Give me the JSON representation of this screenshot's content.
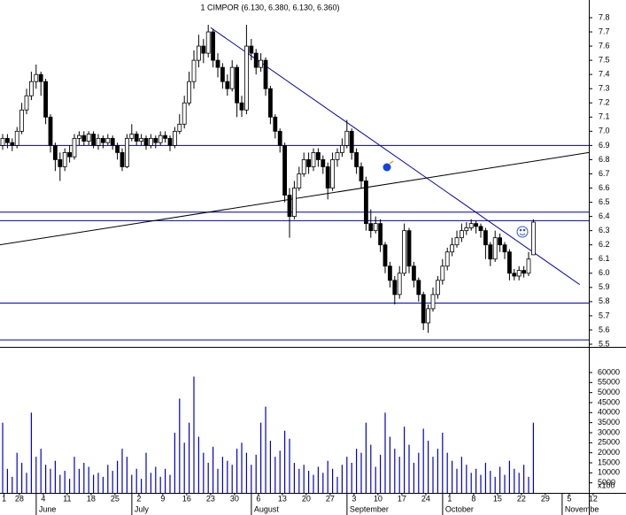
{
  "chart_data": {
    "type": "candlestick",
    "title": "1 CIMPOR (6.130, 6.380, 6.130, 6.360)",
    "candles": [
      [
        6.9,
        6.98,
        6.87,
        6.95
      ],
      [
        6.95,
        6.98,
        6.88,
        6.92
      ],
      [
        6.92,
        6.95,
        6.86,
        6.9
      ],
      [
        6.9,
        7.03,
        6.88,
        7.0
      ],
      [
        7.0,
        7.2,
        6.98,
        7.15
      ],
      [
        7.15,
        7.3,
        7.12,
        7.25
      ],
      [
        7.25,
        7.42,
        7.22,
        7.35
      ],
      [
        7.35,
        7.47,
        7.3,
        7.4
      ],
      [
        7.4,
        7.42,
        7.25,
        7.35
      ],
      [
        7.35,
        7.37,
        7.05,
        7.1
      ],
      [
        7.1,
        7.12,
        6.85,
        6.9
      ],
      [
        6.9,
        6.92,
        6.72,
        6.8
      ],
      [
        6.8,
        6.85,
        6.65,
        6.75
      ],
      [
        6.75,
        6.88,
        6.72,
        6.85
      ],
      [
        6.85,
        6.9,
        6.78,
        6.82
      ],
      [
        6.82,
        6.98,
        6.8,
        6.95
      ],
      [
        6.95,
        7.0,
        6.9,
        6.97
      ],
      [
        6.97,
        7.0,
        6.9,
        6.93
      ],
      [
        6.93,
        7.0,
        6.9,
        6.98
      ],
      [
        6.98,
        7.0,
        6.88,
        6.9
      ],
      [
        6.9,
        6.98,
        6.87,
        6.95
      ],
      [
        6.95,
        6.97,
        6.88,
        6.92
      ],
      [
        6.92,
        6.98,
        6.9,
        6.95
      ],
      [
        6.95,
        6.97,
        6.87,
        6.9
      ],
      [
        6.9,
        6.92,
        6.8,
        6.85
      ],
      [
        6.85,
        6.88,
        6.72,
        6.75
      ],
      [
        6.75,
        6.98,
        6.74,
        6.95
      ],
      [
        6.95,
        7.05,
        6.93,
        6.98
      ],
      [
        6.98,
        7.0,
        6.9,
        6.93
      ],
      [
        6.93,
        6.98,
        6.9,
        6.95
      ],
      [
        6.95,
        6.97,
        6.87,
        6.9
      ],
      [
        6.9,
        6.98,
        6.88,
        6.95
      ],
      [
        6.95,
        6.97,
        6.88,
        6.92
      ],
      [
        6.92,
        7.0,
        6.9,
        6.97
      ],
      [
        6.97,
        7.0,
        6.92,
        6.95
      ],
      [
        6.95,
        6.97,
        6.86,
        6.9
      ],
      [
        6.9,
        7.03,
        6.88,
        7.0
      ],
      [
        7.0,
        7.12,
        6.98,
        7.05
      ],
      [
        7.05,
        7.25,
        7.02,
        7.2
      ],
      [
        7.2,
        7.42,
        7.18,
        7.35
      ],
      [
        7.35,
        7.57,
        7.3,
        7.5
      ],
      [
        7.5,
        7.68,
        7.45,
        7.6
      ],
      [
        7.6,
        7.65,
        7.48,
        7.55
      ],
      [
        7.55,
        7.75,
        7.52,
        7.7
      ],
      [
        7.7,
        7.72,
        7.45,
        7.5
      ],
      [
        7.5,
        7.55,
        7.38,
        7.45
      ],
      [
        7.45,
        7.48,
        7.3,
        7.35
      ],
      [
        7.35,
        7.4,
        7.25,
        7.3
      ],
      [
        7.3,
        7.5,
        7.28,
        7.45
      ],
      [
        7.45,
        7.47,
        7.1,
        7.2
      ],
      [
        7.2,
        7.25,
        7.1,
        7.15
      ],
      [
        7.15,
        7.75,
        7.12,
        7.6
      ],
      [
        7.6,
        7.65,
        7.5,
        7.55
      ],
      [
        7.55,
        7.58,
        7.4,
        7.45
      ],
      [
        7.45,
        7.55,
        7.42,
        7.5
      ],
      [
        7.5,
        7.52,
        7.25,
        7.3
      ],
      [
        7.3,
        7.32,
        7.05,
        7.1
      ],
      [
        7.1,
        7.12,
        6.95,
        7.0
      ],
      [
        7.0,
        7.02,
        6.85,
        6.9
      ],
      [
        6.9,
        6.92,
        6.5,
        6.55
      ],
      [
        6.55,
        6.6,
        6.25,
        6.4
      ],
      [
        6.4,
        6.65,
        6.38,
        6.6
      ],
      [
        6.6,
        6.75,
        6.58,
        6.7
      ],
      [
        6.7,
        6.85,
        6.68,
        6.8
      ],
      [
        6.8,
        6.85,
        6.7,
        6.75
      ],
      [
        6.75,
        6.88,
        6.72,
        6.85
      ],
      [
        6.85,
        6.88,
        6.75,
        6.8
      ],
      [
        6.8,
        6.83,
        6.7,
        6.75
      ],
      [
        6.75,
        6.78,
        6.52,
        6.6
      ],
      [
        6.6,
        6.85,
        6.58,
        6.8
      ],
      [
        6.8,
        6.88,
        6.75,
        6.85
      ],
      [
        6.85,
        6.95,
        6.82,
        6.9
      ],
      [
        6.9,
        7.08,
        6.88,
        7.0
      ],
      [
        7.0,
        7.02,
        6.8,
        6.85
      ],
      [
        6.85,
        6.88,
        6.7,
        6.75
      ],
      [
        6.75,
        6.78,
        6.6,
        6.65
      ],
      [
        6.65,
        6.68,
        6.3,
        6.35
      ],
      [
        6.35,
        6.45,
        6.25,
        6.3
      ],
      [
        6.3,
        6.4,
        6.28,
        6.35
      ],
      [
        6.35,
        6.38,
        6.15,
        6.2
      ],
      [
        6.2,
        6.22,
        6.0,
        6.05
      ],
      [
        6.05,
        6.08,
        5.9,
        5.95
      ],
      [
        5.95,
        5.98,
        5.78,
        5.85
      ],
      [
        5.85,
        6.05,
        5.82,
        6.0
      ],
      [
        6.0,
        6.35,
        5.98,
        6.3
      ],
      [
        6.3,
        6.32,
        6.0,
        6.05
      ],
      [
        6.05,
        6.08,
        5.9,
        5.95
      ],
      [
        5.95,
        5.97,
        5.8,
        5.85
      ],
      [
        5.85,
        5.87,
        5.6,
        5.65
      ],
      [
        5.65,
        5.78,
        5.58,
        5.75
      ],
      [
        5.75,
        5.9,
        5.73,
        5.85
      ],
      [
        5.85,
        5.98,
        5.82,
        5.95
      ],
      [
        5.95,
        6.1,
        5.92,
        6.05
      ],
      [
        6.05,
        6.18,
        6.02,
        6.15
      ],
      [
        6.15,
        6.25,
        6.12,
        6.2
      ],
      [
        6.2,
        6.3,
        6.18,
        6.25
      ],
      [
        6.25,
        6.35,
        6.22,
        6.3
      ],
      [
        6.3,
        6.36,
        6.27,
        6.32
      ],
      [
        6.32,
        6.38,
        6.3,
        6.35
      ],
      [
        6.35,
        6.37,
        6.28,
        6.33
      ],
      [
        6.33,
        6.35,
        6.25,
        6.3
      ],
      [
        6.3,
        6.32,
        6.1,
        6.2
      ],
      [
        6.2,
        6.22,
        6.05,
        6.1
      ],
      [
        6.1,
        6.3,
        6.08,
        6.25
      ],
      [
        6.25,
        6.28,
        6.15,
        6.2
      ],
      [
        6.2,
        6.22,
        6.1,
        6.15
      ],
      [
        6.15,
        6.17,
        5.95,
        6.0
      ],
      [
        6.0,
        6.03,
        5.95,
        5.98
      ],
      [
        5.98,
        6.05,
        5.95,
        6.02
      ],
      [
        6.02,
        6.05,
        5.97,
        6.0
      ],
      [
        6.0,
        6.15,
        5.98,
        6.1
      ],
      [
        6.13,
        6.38,
        6.13,
        6.36
      ]
    ],
    "volumes": [
      35000,
      12000,
      8000,
      20000,
      15000,
      10000,
      40000,
      18000,
      22000,
      14000,
      12000,
      16000,
      9000,
      11000,
      7000,
      18000,
      12000,
      15000,
      13000,
      9000,
      10000,
      8000,
      14000,
      11000,
      16000,
      22000,
      18000,
      9000,
      12000,
      7000,
      20000,
      10000,
      13000,
      8000,
      12000,
      9000,
      30000,
      47000,
      25000,
      35000,
      58000,
      28000,
      20000,
      15000,
      23000,
      12000,
      18000,
      16000,
      14000,
      22000,
      25000,
      20000,
      14000,
      19000,
      35000,
      43000,
      26000,
      18000,
      21000,
      31000,
      27000,
      15000,
      12000,
      14000,
      11000,
      9000,
      13000,
      10000,
      16000,
      12000,
      8000,
      14000,
      18000,
      15000,
      22000,
      20000,
      35000,
      24000,
      13000,
      19000,
      40000,
      28000,
      22000,
      18000,
      33000,
      24000,
      15000,
      20000,
      32000,
      26000,
      18000,
      22000,
      30000,
      20000,
      16000,
      12000,
      18000,
      14000,
      10000,
      12000,
      9000,
      15000,
      11000,
      8000,
      13000,
      9000,
      16000,
      12000,
      10000,
      14000,
      8000,
      35000
    ],
    "ylim": [
      5.5,
      7.8
    ],
    "yticks": [
      7.8,
      7.7,
      7.6,
      7.5,
      7.4,
      7.3,
      7.2,
      7.1,
      {
        "value": 7,
        "label": "7.0"
      },
      6.9,
      6.8,
      6.7,
      6.6,
      6.5,
      6.4,
      6.3,
      6.2,
      6.1,
      {
        "value": 6,
        "label": "6.0"
      },
      5.9,
      5.8,
      5.7,
      5.6,
      5.5
    ],
    "volume_ylim": [
      0,
      60000
    ],
    "volume_ticks": [
      60000,
      55000,
      50000,
      45000,
      40000,
      35000,
      30000,
      25000,
      20000,
      15000,
      10000,
      5000
    ],
    "volume_unit": "x100",
    "x_ticks": [
      "1",
      "28",
      "4",
      "11",
      "18",
      "25",
      "2",
      "9",
      "16",
      "23",
      "30",
      "6",
      "13",
      "20",
      "27",
      "3",
      "10",
      "17",
      "24",
      "1",
      "8",
      "15",
      "22",
      "29",
      "5",
      "12"
    ],
    "months": [
      {
        "tick": 2,
        "label": "June"
      },
      {
        "tick": 6,
        "label": "July"
      },
      {
        "tick": 11,
        "label": "August"
      },
      {
        "tick": 15,
        "label": "September"
      },
      {
        "tick": 19,
        "label": "October"
      },
      {
        "tick": 24,
        "label": "Novembe"
      }
    ],
    "hlines": [
      6.9,
      6.43,
      6.37,
      5.79,
      5.53
    ],
    "trendlines": [
      {
        "from": [
          43.5,
          7.73
        ],
        "to": [
          120.7,
          5.92
        ]
      },
      {
        "from": [
          -0.6,
          6.2
        ],
        "to": [
          122.6,
          6.85
        ]
      }
    ],
    "up_color": "#ffffff",
    "down_color": "#000000",
    "line_color": "#0000aa",
    "volume_color": "#0000cc"
  }
}
